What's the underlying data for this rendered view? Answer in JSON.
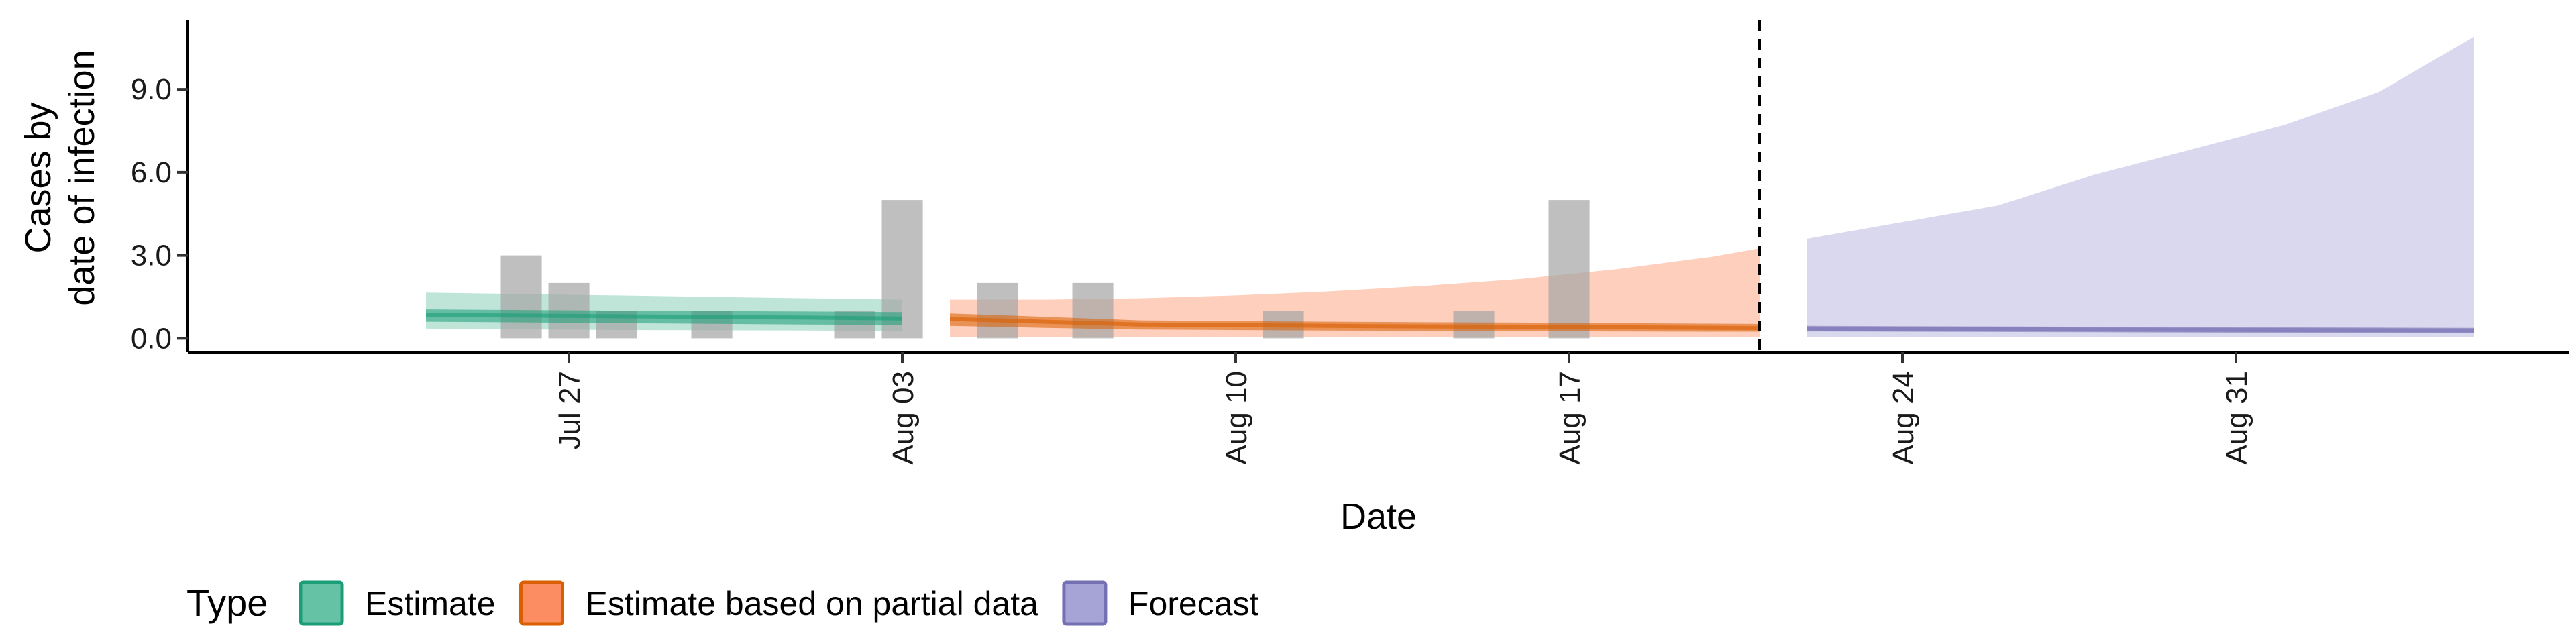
{
  "chart_data": {
    "type": "area",
    "xlabel": "Date",
    "ylabel_line1": "Cases by",
    "ylabel_line2": "date of infection",
    "xlim": [
      "2021-07-19",
      "2021-09-07"
    ],
    "ylim": [
      -0.5,
      11.5
    ],
    "x_ticks": [
      {
        "date": "2021-07-27",
        "label": "Jul 27"
      },
      {
        "date": "2021-08-03",
        "label": "Aug 03"
      },
      {
        "date": "2021-08-10",
        "label": "Aug 10"
      },
      {
        "date": "2021-08-17",
        "label": "Aug 17"
      },
      {
        "date": "2021-08-24",
        "label": "Aug 24"
      },
      {
        "date": "2021-08-31",
        "label": "Aug 31"
      }
    ],
    "y_ticks": [
      {
        "value": 0,
        "label": "0.0"
      },
      {
        "value": 3,
        "label": "3.0"
      },
      {
        "value": 6,
        "label": "6.0"
      },
      {
        "value": 9,
        "label": "9.0"
      }
    ],
    "vline_date": "2021-08-21",
    "grid": false,
    "legend_position": "bottom",
    "legend_title": "Type",
    "legend": [
      {
        "label": "Estimate",
        "fill": "#66c2a5",
        "stroke": "#1b9e77"
      },
      {
        "label": "Estimate based on partial data",
        "fill": "#fc8d62",
        "stroke": "#d95f02"
      },
      {
        "label": "Forecast",
        "fill": "#a6a3d6",
        "stroke": "#7570b3"
      }
    ],
    "observed_cases": {
      "color": "#a6a6a6",
      "points": [
        {
          "date": "2021-07-26",
          "value": 3
        },
        {
          "date": "2021-07-27",
          "value": 2
        },
        {
          "date": "2021-07-28",
          "value": 1
        },
        {
          "date": "2021-07-30",
          "value": 1
        },
        {
          "date": "2021-08-02",
          "value": 1
        },
        {
          "date": "2021-08-03",
          "value": 5
        },
        {
          "date": "2021-08-05",
          "value": 2
        },
        {
          "date": "2021-08-07",
          "value": 2
        },
        {
          "date": "2021-08-11",
          "value": 1
        },
        {
          "date": "2021-08-15",
          "value": 1
        },
        {
          "date": "2021-08-17",
          "value": 5
        }
      ]
    },
    "series": [
      {
        "name": "Estimate",
        "color": "#1b9e77",
        "dates": [
          "2021-07-24",
          "2021-07-28",
          "2021-08-01",
          "2021-08-03"
        ],
        "median": [
          0.85,
          0.8,
          0.75,
          0.72
        ],
        "lower50": [
          0.6,
          0.55,
          0.5,
          0.48
        ],
        "upper50": [
          1.05,
          1.0,
          0.97,
          0.95
        ],
        "lower90": [
          0.35,
          0.3,
          0.28,
          0.26
        ],
        "upper90": [
          1.65,
          1.55,
          1.45,
          1.4
        ]
      },
      {
        "name": "Estimate based on partial data",
        "color": "#d95f02",
        "dates": [
          "2021-08-04",
          "2021-08-06",
          "2021-08-08",
          "2021-08-10",
          "2021-08-12",
          "2021-08-14",
          "2021-08-16",
          "2021-08-18",
          "2021-08-20",
          "2021-08-21"
        ],
        "median": [
          0.7,
          0.6,
          0.5,
          0.48,
          0.45,
          0.43,
          0.42,
          0.4,
          0.38,
          0.37
        ],
        "lower50": [
          0.45,
          0.38,
          0.32,
          0.3,
          0.28,
          0.27,
          0.26,
          0.25,
          0.24,
          0.24
        ],
        "upper50": [
          0.9,
          0.78,
          0.65,
          0.62,
          0.6,
          0.58,
          0.57,
          0.55,
          0.53,
          0.52
        ],
        "lower90": [
          0.05,
          0.05,
          0.05,
          0.05,
          0.05,
          0.05,
          0.05,
          0.05,
          0.05,
          0.05
        ],
        "upper90": [
          1.4,
          1.4,
          1.45,
          1.55,
          1.7,
          1.9,
          2.15,
          2.5,
          2.95,
          3.25
        ]
      },
      {
        "name": "Forecast",
        "color": "#7570b3",
        "dates": [
          "2021-08-22",
          "2021-08-24",
          "2021-08-26",
          "2021-08-28",
          "2021-08-30",
          "2021-09-01",
          "2021-09-03",
          "2021-09-05"
        ],
        "median": [
          0.35,
          0.34,
          0.33,
          0.32,
          0.31,
          0.3,
          0.29,
          0.28
        ],
        "lower50": [
          0.25,
          0.24,
          0.23,
          0.22,
          0.21,
          0.2,
          0.19,
          0.18
        ],
        "upper50": [
          0.45,
          0.44,
          0.43,
          0.42,
          0.41,
          0.4,
          0.39,
          0.38
        ],
        "lower90": [
          0.05,
          0.05,
          0.05,
          0.05,
          0.05,
          0.05,
          0.05,
          0.05
        ],
        "upper90": [
          3.6,
          4.2,
          4.8,
          5.9,
          6.8,
          7.7,
          8.9,
          10.9
        ]
      }
    ]
  }
}
